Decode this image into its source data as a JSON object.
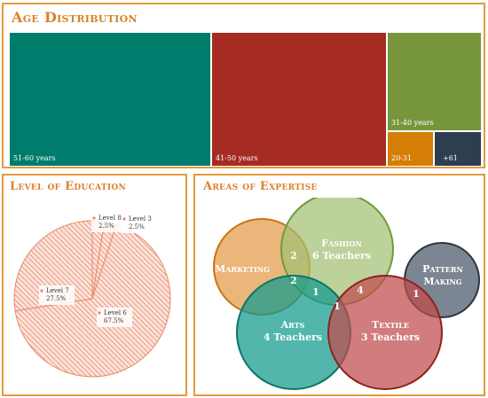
{
  "age_panel": {
    "title": "Age Distribution",
    "chart_data": {
      "type": "treemap",
      "title": "Age Distribution",
      "items": [
        {
          "label": "51-60 years",
          "color": "#007c6c"
        },
        {
          "label": "41-50 years",
          "color": "#a52b23"
        },
        {
          "label": "31-40 years",
          "color": "#77963c"
        },
        {
          "label": "20-31",
          "color": "#d57e05"
        },
        {
          "label": "+61",
          "color": "#2c3e50"
        }
      ]
    }
  },
  "edu_panel": {
    "title": "Level of Education",
    "chart_data": {
      "type": "pie",
      "title": "Level of Education",
      "slices": [
        {
          "label": "Level 8",
          "pct_text": "2.5%",
          "value": 2.5
        },
        {
          "label": "Level 3",
          "pct_text": "2.5%",
          "value": 2.5
        },
        {
          "label": "Level 6",
          "pct_text": "67.5%",
          "value": 67.5
        },
        {
          "label": "Level 7",
          "pct_text": "27.5%",
          "value": 27.5
        }
      ],
      "colors": {
        "stroke": "#e8896a",
        "fill": "#fbe3da"
      }
    }
  },
  "exp_panel": {
    "title": "Areas of Expertise",
    "chart_data": {
      "type": "venn",
      "title": "Areas of Expertise",
      "sets": [
        {
          "id": "marketing",
          "name": "Marketing",
          "count_text": "",
          "color": "#e39a45"
        },
        {
          "id": "fashion",
          "name": "Fashion",
          "count_text": "6 Teachers",
          "color": "#a3bf73"
        },
        {
          "id": "pattern",
          "name": "Pattern Making",
          "count_text": "",
          "color": "#4a5668"
        },
        {
          "id": "arts",
          "name": "Arts",
          "count_text": "4 Teachers",
          "color": "#0f9a8c"
        },
        {
          "id": "textile",
          "name": "Textile",
          "count_text": "3 Teachers",
          "color": "#c14b4b"
        }
      ],
      "overlaps": [
        {
          "sets": [
            "marketing",
            "fashion"
          ],
          "value": 2
        },
        {
          "sets": [
            "marketing",
            "fashion",
            "arts"
          ],
          "value": 2
        },
        {
          "sets": [
            "fashion",
            "arts"
          ],
          "value": 1
        },
        {
          "sets": [
            "fashion",
            "textile"
          ],
          "value": 4
        },
        {
          "sets": [
            "arts",
            "textile"
          ],
          "value": 1
        },
        {
          "sets": [
            "pattern",
            "textile"
          ],
          "value": 1
        }
      ]
    }
  }
}
